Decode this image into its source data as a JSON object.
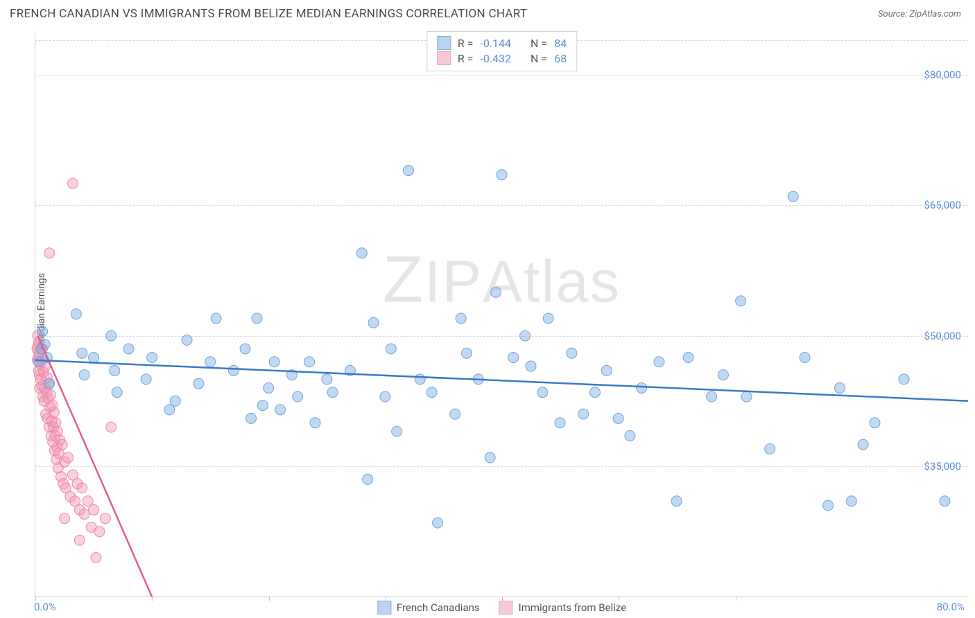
{
  "header": {
    "title": "FRENCH CANADIAN VS IMMIGRANTS FROM BELIZE MEDIAN EARNINGS CORRELATION CHART",
    "source_prefix": "Source: ",
    "source_name": "ZipAtlas.com"
  },
  "watermark": {
    "z": "Z",
    "ip": "IP",
    "atlas": "Atlas"
  },
  "chart": {
    "type": "scatter",
    "ylabel": "Median Earnings",
    "xlim": [
      0,
      80
    ],
    "ylim": [
      20000,
      85000
    ],
    "x_axis": {
      "label_left": "0.0%",
      "label_right": "80.0%",
      "ticks_pct": [
        0,
        12.5,
        25,
        37.5,
        50,
        62.5,
        75
      ]
    },
    "y_axis": {
      "ticks": [
        {
          "value": 35000,
          "label": "$35,000"
        },
        {
          "value": 50000,
          "label": "$50,000"
        },
        {
          "value": 65000,
          "label": "$65,000"
        },
        {
          "value": 80000,
          "label": "$80,000"
        }
      ],
      "grid_top_value": 84000
    },
    "colors": {
      "blue_fill": "rgba(120,170,230,0.45)",
      "blue_stroke": "#6fa3d8",
      "blue_line": "#3a78c9",
      "pink_fill": "rgba(245,150,180,0.45)",
      "pink_stroke": "#e88aa8",
      "pink_line": "#e75a8a",
      "swatch_blue_fill": "#b8d4f0",
      "swatch_blue_border": "#7fb0e0",
      "swatch_pink_fill": "#f7c9d8",
      "swatch_pink_border": "#eda0b8",
      "grid": "#d8d8d8",
      "axis_text": "#5b8dd6"
    },
    "marker_radius": 7.5,
    "stat_legend": [
      {
        "series": "blue",
        "R": "-0.144",
        "N": "84"
      },
      {
        "series": "pink",
        "R": "-0.432",
        "N": "68"
      }
    ],
    "bottom_legend": [
      {
        "series": "blue",
        "label": "French Canadians"
      },
      {
        "series": "pink",
        "label": "Immigrants from Belize"
      }
    ],
    "trend_lines": {
      "blue": {
        "x1": 0,
        "y1": 47200,
        "x2": 80,
        "y2": 42500
      },
      "pink": {
        "x1": 0.2,
        "y1": 50000,
        "x2": 10,
        "y2": 20000
      }
    },
    "series_blue": [
      [
        0.3,
        47000
      ],
      [
        0.5,
        48500
      ],
      [
        0.6,
        50500
      ],
      [
        0.8,
        49000
      ],
      [
        1.0,
        47500
      ],
      [
        1.2,
        44500
      ],
      [
        3.5,
        52500
      ],
      [
        4.0,
        48000
      ],
      [
        4.2,
        45500
      ],
      [
        5.0,
        47500
      ],
      [
        6.5,
        50000
      ],
      [
        6.8,
        46000
      ],
      [
        7.0,
        43500
      ],
      [
        8.0,
        48500
      ],
      [
        9.5,
        45000
      ],
      [
        10.0,
        47500
      ],
      [
        11.5,
        41500
      ],
      [
        12.0,
        42500
      ],
      [
        13.0,
        49500
      ],
      [
        14.0,
        44500
      ],
      [
        15.0,
        47000
      ],
      [
        15.5,
        52000
      ],
      [
        17.0,
        46000
      ],
      [
        18.0,
        48500
      ],
      [
        18.5,
        40500
      ],
      [
        19.0,
        52000
      ],
      [
        19.5,
        42000
      ],
      [
        20.0,
        44000
      ],
      [
        20.5,
        47000
      ],
      [
        21.0,
        41500
      ],
      [
        22.0,
        45500
      ],
      [
        22.5,
        43000
      ],
      [
        23.5,
        47000
      ],
      [
        24.0,
        40000
      ],
      [
        25.0,
        45000
      ],
      [
        25.5,
        43500
      ],
      [
        27.0,
        46000
      ],
      [
        28.0,
        59500
      ],
      [
        28.5,
        33500
      ],
      [
        29.0,
        51500
      ],
      [
        30.0,
        43000
      ],
      [
        30.5,
        48500
      ],
      [
        31.0,
        39000
      ],
      [
        32.0,
        69000
      ],
      [
        33.0,
        45000
      ],
      [
        34.0,
        43500
      ],
      [
        34.5,
        28500
      ],
      [
        36.0,
        41000
      ],
      [
        36.5,
        52000
      ],
      [
        37.0,
        48000
      ],
      [
        38.0,
        45000
      ],
      [
        39.0,
        36000
      ],
      [
        39.5,
        55000
      ],
      [
        40.0,
        68500
      ],
      [
        41.0,
        47500
      ],
      [
        42.0,
        50000
      ],
      [
        42.5,
        46500
      ],
      [
        43.5,
        43500
      ],
      [
        44.0,
        52000
      ],
      [
        45.0,
        40000
      ],
      [
        46.0,
        48000
      ],
      [
        47.0,
        41000
      ],
      [
        48.0,
        43500
      ],
      [
        49.0,
        46000
      ],
      [
        50.0,
        40500
      ],
      [
        51.0,
        38500
      ],
      [
        52.0,
        44000
      ],
      [
        53.5,
        47000
      ],
      [
        55.0,
        31000
      ],
      [
        56.0,
        47500
      ],
      [
        58.0,
        43000
      ],
      [
        59.0,
        45500
      ],
      [
        60.5,
        54000
      ],
      [
        61.0,
        43000
      ],
      [
        63.0,
        37000
      ],
      [
        65.0,
        66000
      ],
      [
        66.0,
        47500
      ],
      [
        68.0,
        30500
      ],
      [
        69.0,
        44000
      ],
      [
        70.0,
        31000
      ],
      [
        71.0,
        37500
      ],
      [
        72.0,
        40000
      ],
      [
        74.5,
        45000
      ],
      [
        78.0,
        31000
      ]
    ],
    "series_pink": [
      [
        0.15,
        48500
      ],
      [
        0.18,
        47200
      ],
      [
        0.2,
        50000
      ],
      [
        0.22,
        48800
      ],
      [
        0.25,
        47500
      ],
      [
        0.28,
        49200
      ],
      [
        0.3,
        46000
      ],
      [
        0.32,
        48000
      ],
      [
        0.35,
        45500
      ],
      [
        0.38,
        44000
      ],
      [
        0.4,
        46800
      ],
      [
        0.45,
        45000
      ],
      [
        0.5,
        47200
      ],
      [
        0.55,
        44200
      ],
      [
        0.6,
        48500
      ],
      [
        0.65,
        43000
      ],
      [
        0.7,
        45800
      ],
      [
        0.75,
        42500
      ],
      [
        0.8,
        44000
      ],
      [
        0.85,
        46500
      ],
      [
        0.9,
        41000
      ],
      [
        0.95,
        43500
      ],
      [
        1.0,
        45200
      ],
      [
        1.05,
        40500
      ],
      [
        1.1,
        42800
      ],
      [
        1.15,
        44500
      ],
      [
        1.2,
        39500
      ],
      [
        1.25,
        41800
      ],
      [
        1.3,
        43200
      ],
      [
        1.35,
        38500
      ],
      [
        1.4,
        40200
      ],
      [
        1.45,
        42000
      ],
      [
        1.5,
        37800
      ],
      [
        1.55,
        39500
      ],
      [
        1.6,
        41200
      ],
      [
        1.65,
        36800
      ],
      [
        1.7,
        38500
      ],
      [
        1.75,
        40000
      ],
      [
        1.8,
        35800
      ],
      [
        1.85,
        37200
      ],
      [
        1.9,
        39000
      ],
      [
        1.95,
        34800
      ],
      [
        2.0,
        36500
      ],
      [
        2.1,
        38000
      ],
      [
        2.2,
        33800
      ],
      [
        2.3,
        37500
      ],
      [
        2.4,
        33000
      ],
      [
        2.5,
        35500
      ],
      [
        2.6,
        32500
      ],
      [
        2.8,
        36000
      ],
      [
        3.0,
        31500
      ],
      [
        3.2,
        34000
      ],
      [
        3.4,
        31000
      ],
      [
        3.6,
        33000
      ],
      [
        3.8,
        30000
      ],
      [
        4.0,
        32500
      ],
      [
        4.2,
        29500
      ],
      [
        4.5,
        31000
      ],
      [
        4.8,
        28000
      ],
      [
        5.0,
        30000
      ],
      [
        5.5,
        27500
      ],
      [
        6.0,
        29000
      ],
      [
        6.5,
        39500
      ],
      [
        1.2,
        59500
      ],
      [
        3.2,
        67500
      ],
      [
        2.5,
        29000
      ],
      [
        3.8,
        26500
      ],
      [
        5.2,
        24500
      ]
    ]
  },
  "labels": {
    "R": "R =",
    "N": "N ="
  }
}
